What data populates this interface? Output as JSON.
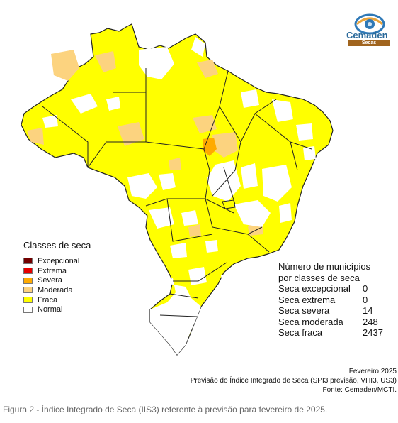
{
  "logo": {
    "name": "Cemaden",
    "band": "Secas"
  },
  "legend": {
    "title": "Classes de seca",
    "items": [
      {
        "label": "Excepcional",
        "color": "#730000"
      },
      {
        "label": "Extrema",
        "color": "#e60000"
      },
      {
        "label": "Severa",
        "color": "#ffaa00"
      },
      {
        "label": "Moderada",
        "color": "#fcd37f"
      },
      {
        "label": "Fraca",
        "color": "#ffff00"
      },
      {
        "label": "Normal",
        "color": "#ffffff"
      }
    ]
  },
  "counts": {
    "title_line1": "Número de municípios",
    "title_line2": "por classes de seca",
    "rows": [
      {
        "label": "Seca excepcional",
        "value": "0"
      },
      {
        "label": "Seca extrema",
        "value": "0"
      },
      {
        "label": "Seca severa",
        "value": "14"
      },
      {
        "label": "Seca moderada",
        "value": "248"
      },
      {
        "label": "Seca fraca",
        "value": "2437"
      }
    ]
  },
  "footer": {
    "date": "Fevereiro 2025",
    "description": "Previsão do Índice Integrado de Seca (SPI3 previsão, VHI3, US3)",
    "source": "Fonte: Cemaden/MCTI."
  },
  "caption": "Figura 2 - Índice Integrado de Seca (IIS3) referente à previsão para fevereiro de 2025."
}
